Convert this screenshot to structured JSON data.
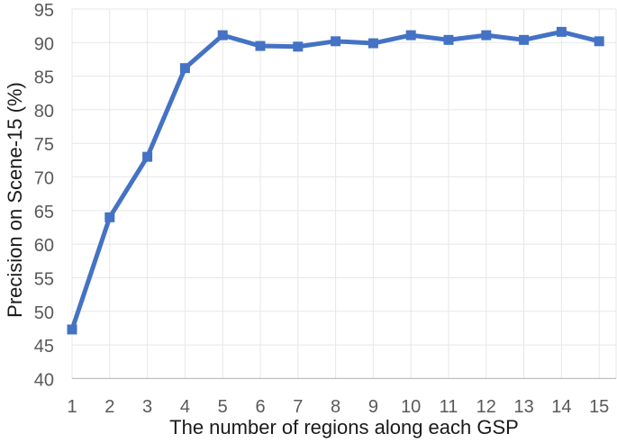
{
  "chart_data": {
    "type": "line",
    "title": "",
    "xlabel": "The number of regions along each GSP",
    "ylabel": "Precision on Scene-15 (%)",
    "categories": [
      1,
      2,
      3,
      4,
      5,
      6,
      7,
      8,
      9,
      10,
      11,
      12,
      13,
      14,
      15
    ],
    "series": [
      {
        "name": "Precision on Scene-15",
        "values": [
          47.3,
          64.0,
          73.0,
          86.2,
          91.1,
          89.5,
          89.4,
          90.2,
          89.9,
          91.1,
          90.4,
          91.1,
          90.4,
          91.6,
          90.2
        ]
      }
    ],
    "ylim": [
      40,
      95
    ],
    "yticks": [
      40,
      45,
      50,
      55,
      60,
      65,
      70,
      75,
      80,
      85,
      90,
      95
    ],
    "grid": true,
    "legend_position": "none",
    "marker": "square",
    "colors": {
      "line": "#4472C4",
      "marker": "#4472C4",
      "gridline": "#E7E7E7",
      "axis_line": "#BFBFBF",
      "tick_text": "#595959",
      "title_text": "#1A1A1A",
      "background": "#FFFFFF"
    }
  }
}
